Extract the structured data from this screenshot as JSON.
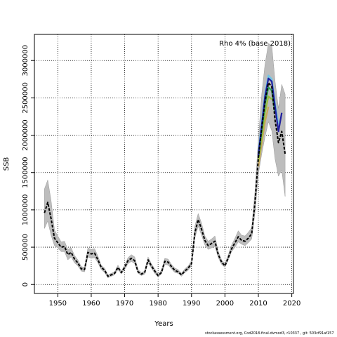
{
  "chart_data": {
    "type": "line",
    "title": "",
    "annotation": "Rho 4% (base 2018)",
    "xlabel": "Years",
    "ylabel": "SSB",
    "xlim": [
      1943,
      2020.5
    ],
    "ylim": [
      -120000,
      3350000
    ],
    "x_ticks": [
      1950,
      1960,
      1970,
      1980,
      1990,
      2000,
      2010,
      2020
    ],
    "y_ticks": [
      0,
      500000,
      1000000,
      1500000,
      2000000,
      2500000,
      3000000
    ],
    "grid": true,
    "grid_style": "dotted",
    "colors": {
      "band": "#bdbdbd",
      "base": "#000000",
      "peel_1": "#1f1fa0",
      "peel_2": "#6ec6e6",
      "peel_3": "#2e9e55",
      "peel_4": "#9bbf3b",
      "peel_5": "#c9a85a"
    },
    "series": [
      {
        "key": "base",
        "x": [
          1946,
          1947,
          1948,
          1949,
          1950,
          1951,
          1952,
          1953,
          1954,
          1955,
          1956,
          1957,
          1958,
          1959,
          1960,
          1961,
          1962,
          1963,
          1964,
          1965,
          1966,
          1967,
          1968,
          1969,
          1970,
          1971,
          1972,
          1973,
          1974,
          1975,
          1976,
          1977,
          1978,
          1979,
          1980,
          1981,
          1982,
          1983,
          1984,
          1985,
          1986,
          1987,
          1988,
          1989,
          1990,
          1991,
          1992,
          1993,
          1994,
          1995,
          1996,
          1997,
          1998,
          1999,
          2000,
          2001,
          2002,
          2003,
          2004,
          2005,
          2006,
          2007,
          2008,
          2009,
          2010,
          2011,
          2012,
          2013,
          2014,
          2015,
          2016,
          2017,
          2018
        ],
        "values": [
          960000,
          1100000,
          880000,
          620000,
          560000,
          500000,
          510000,
          400000,
          430000,
          340000,
          290000,
          210000,
          200000,
          430000,
          410000,
          420000,
          330000,
          230000,
          190000,
          110000,
          130000,
          150000,
          230000,
          160000,
          230000,
          320000,
          350000,
          320000,
          170000,
          140000,
          160000,
          330000,
          250000,
          180000,
          120000,
          160000,
          310000,
          300000,
          240000,
          190000,
          170000,
          130000,
          180000,
          220000,
          280000,
          690000,
          870000,
          740000,
          590000,
          520000,
          550000,
          580000,
          400000,
          300000,
          250000,
          360000,
          480000,
          560000,
          640000,
          590000,
          580000,
          620000,
          680000,
          1100000,
          1700000,
          2100000,
          2450000,
          2700000,
          2650000,
          2200000,
          1900000,
          2050000,
          1750000
        ]
      },
      {
        "key": "peel_1",
        "x": [
          2010,
          2011,
          2012,
          2013,
          2014,
          2015,
          2016,
          2017
        ],
        "values": [
          1730000,
          2130000,
          2520000,
          2760000,
          2720000,
          2380000,
          2050000,
          2300000
        ]
      },
      {
        "key": "peel_2",
        "x": [
          2010,
          2011,
          2012,
          2013,
          2014,
          2015,
          2016
        ],
        "values": [
          1760000,
          2180000,
          2560000,
          2800000,
          2750000,
          2420000,
          2150000
        ]
      },
      {
        "key": "peel_3",
        "x": [
          2010,
          2011,
          2012,
          2013,
          2014,
          2015
        ],
        "values": [
          1700000,
          2060000,
          2420000,
          2640000,
          2600000,
          2300000
        ]
      },
      {
        "key": "peel_4",
        "x": [
          2010,
          2011,
          2012,
          2013,
          2014
        ],
        "values": [
          1650000,
          1980000,
          2300000,
          2520000,
          2480000
        ]
      },
      {
        "key": "peel_5",
        "x": [
          2010,
          2011,
          2012,
          2013
        ],
        "values": [
          1580000,
          1890000,
          2180000,
          2380000
        ]
      }
    ],
    "band": {
      "x": [
        1946,
        1947,
        1948,
        1949,
        1950,
        1951,
        1952,
        1953,
        1954,
        1955,
        1956,
        1957,
        1958,
        1959,
        1960,
        1961,
        1962,
        1963,
        1964,
        1965,
        1966,
        1967,
        1968,
        1969,
        1970,
        1971,
        1972,
        1973,
        1974,
        1975,
        1976,
        1977,
        1978,
        1979,
        1980,
        1981,
        1982,
        1983,
        1984,
        1985,
        1986,
        1987,
        1988,
        1989,
        1990,
        1991,
        1992,
        1993,
        1994,
        1995,
        1996,
        1997,
        1998,
        1999,
        2000,
        2001,
        2002,
        2003,
        2004,
        2005,
        2006,
        2007,
        2008,
        2009,
        2010,
        2011,
        2012,
        2013,
        2014,
        2015,
        2016,
        2017,
        2018
      ],
      "lower": [
        750000,
        850000,
        660000,
        520000,
        490000,
        440000,
        440000,
        330000,
        370000,
        290000,
        250000,
        180000,
        170000,
        370000,
        350000,
        360000,
        290000,
        200000,
        160000,
        90000,
        110000,
        130000,
        200000,
        140000,
        200000,
        280000,
        310000,
        280000,
        150000,
        120000,
        140000,
        290000,
        220000,
        150000,
        100000,
        140000,
        270000,
        260000,
        210000,
        160000,
        150000,
        110000,
        160000,
        190000,
        250000,
        620000,
        780000,
        660000,
        530000,
        470000,
        490000,
        510000,
        360000,
        270000,
        230000,
        330000,
        440000,
        500000,
        570000,
        540000,
        520000,
        560000,
        610000,
        960000,
        1480000,
        1750000,
        1980000,
        2180000,
        2060000,
        1680000,
        1450000,
        1530000,
        1180000
      ],
      "upper": [
        1280000,
        1400000,
        1120000,
        730000,
        650000,
        570000,
        580000,
        470000,
        490000,
        390000,
        330000,
        240000,
        230000,
        490000,
        470000,
        480000,
        380000,
        260000,
        220000,
        130000,
        150000,
        170000,
        260000,
        180000,
        260000,
        360000,
        400000,
        370000,
        200000,
        160000,
        180000,
        370000,
        280000,
        210000,
        140000,
        190000,
        350000,
        340000,
        270000,
        220000,
        200000,
        150000,
        210000,
        250000,
        320000,
        780000,
        950000,
        820000,
        650000,
        580000,
        610000,
        650000,
        440000,
        330000,
        280000,
        400000,
        530000,
        620000,
        720000,
        660000,
        650000,
        700000,
        760000,
        1250000,
        1950000,
        2550000,
        2950000,
        3230000,
        3200000,
        2720000,
        2360000,
        2680000,
        2550000
      ]
    },
    "footer": "stockassessment.org,  Cod2018-final-dvmod3,  r10337 ,  git:  503cf91af157"
  }
}
